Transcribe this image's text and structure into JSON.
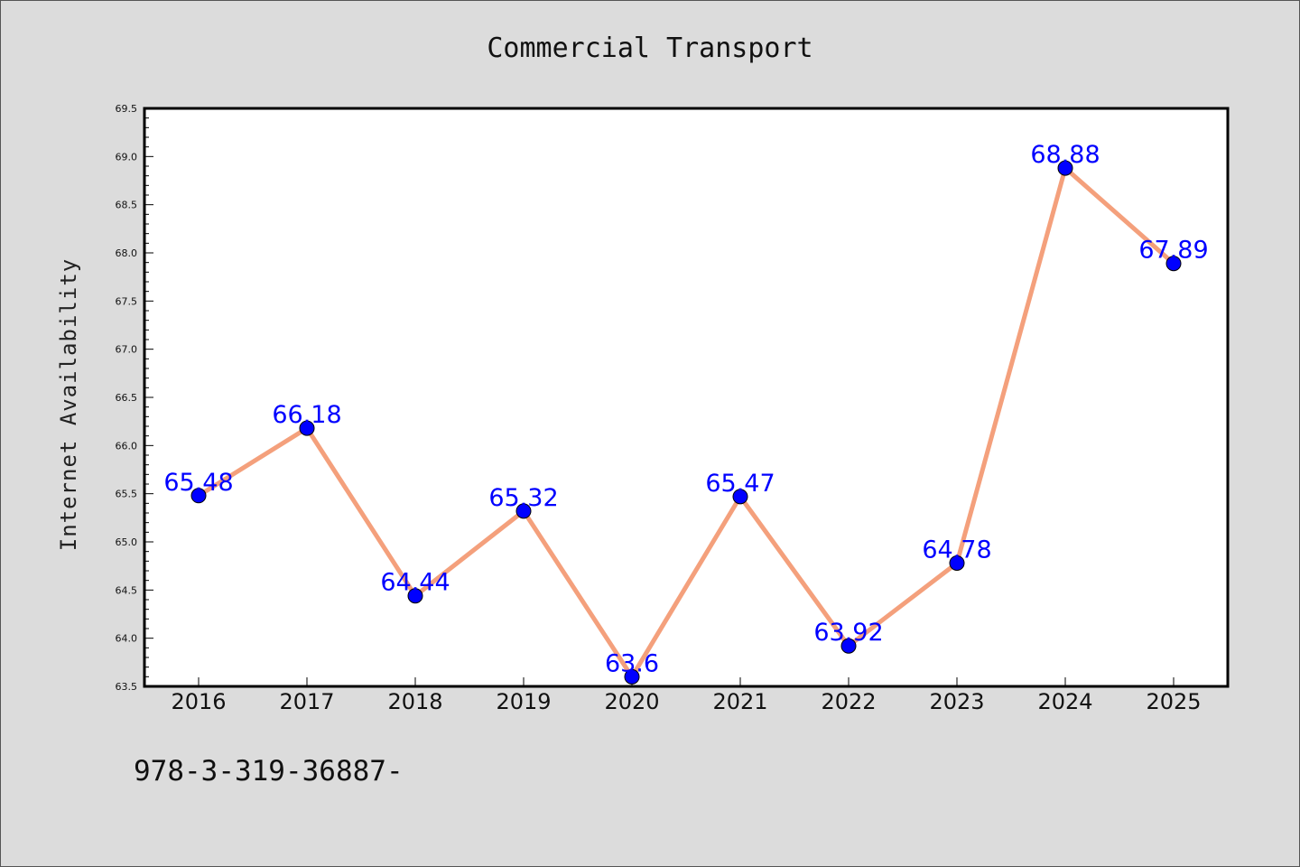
{
  "chart_data": {
    "type": "line",
    "title": "Commercial Transport",
    "xlabel": "",
    "ylabel": "Internet Availability",
    "categories": [
      "2016",
      "2017",
      "2018",
      "2019",
      "2020",
      "2021",
      "2022",
      "2023",
      "2024",
      "2025"
    ],
    "series": [
      {
        "values": [
          65.48,
          66.18,
          64.44,
          65.32,
          63.6,
          65.47,
          63.92,
          64.78,
          68.88,
          67.89
        ],
        "line_color": "#f4a07c",
        "marker_color": "#0000ff"
      }
    ],
    "data_labels": [
      "65.48",
      "66.18",
      "64.44",
      "65.32",
      "63.6",
      "65.47",
      "63.92",
      "64.78",
      "68.88",
      "67.89"
    ],
    "ylim": [
      63.5,
      69.5
    ],
    "yticks": [
      "63.5",
      "64.0",
      "64.5",
      "65.0",
      "65.5",
      "66.0",
      "66.5",
      "67.0",
      "67.5",
      "68.0",
      "68.5",
      "69.0",
      "69.5"
    ],
    "grid": false,
    "legend": "none"
  },
  "footnote": "978-3-319-36887-"
}
